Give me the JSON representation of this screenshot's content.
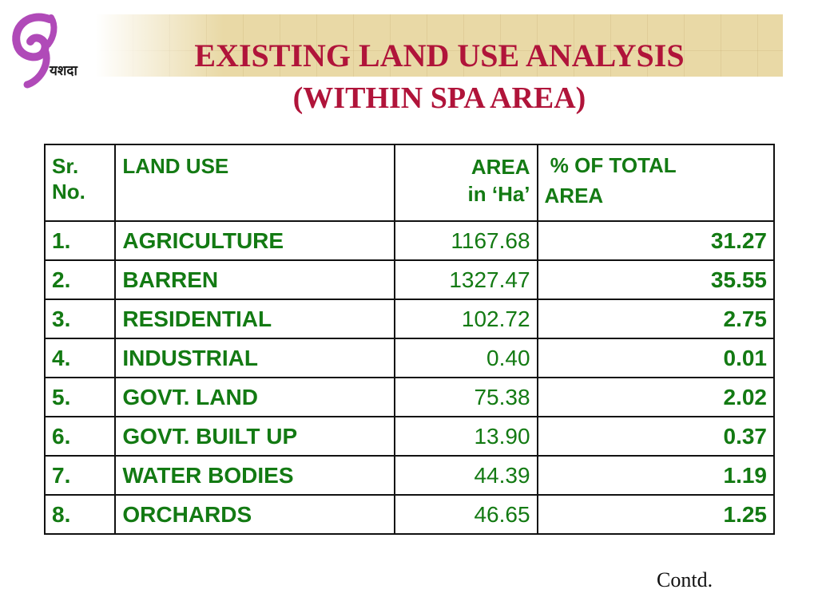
{
  "logo": {
    "text": "यशदा",
    "accent_color": "#b04ab8"
  },
  "title": "EXISTING LAND USE ANALYSIS",
  "subtitle": "(WITHIN SPA AREA)",
  "table": {
    "headers": {
      "sr_line1": "Sr.",
      "sr_line2": "No.",
      "land_use": "LAND USE",
      "area_line1": "AREA",
      "area_line2": "in ‘Ha’",
      "pct_line1": "% OF TOTAL",
      "pct_line2": "AREA"
    },
    "rows": [
      {
        "sr": "1.",
        "use": "AGRICULTURE",
        "area": "1167.68",
        "pct": "31.27"
      },
      {
        "sr": "2.",
        "use": "BARREN",
        "area": "1327.47",
        "pct": "35.55"
      },
      {
        "sr": "3.",
        "use": "RESIDENTIAL",
        "area": "102.72",
        "pct": "2.75"
      },
      {
        "sr": "4.",
        "use": "INDUSTRIAL",
        "area": "0.40",
        "pct": "0.01"
      },
      {
        "sr": "5.",
        "use": "GOVT. LAND",
        "area": "75.38",
        "pct": "2.02"
      },
      {
        "sr": "6.",
        "use": "GOVT. BUILT UP",
        "area": "13.90",
        "pct": "0.37"
      },
      {
        "sr": "7.",
        "use": "WATER BODIES",
        "area": "44.39",
        "pct": "1.19"
      },
      {
        "sr": "8.",
        "use": "ORCHARDS",
        "area": "46.65",
        "pct": "1.25"
      }
    ]
  },
  "footer": {
    "contd": "Contd."
  },
  "colors": {
    "title": "#b0143a",
    "table_text": "#137a13",
    "banner": "#e9d9a6"
  }
}
